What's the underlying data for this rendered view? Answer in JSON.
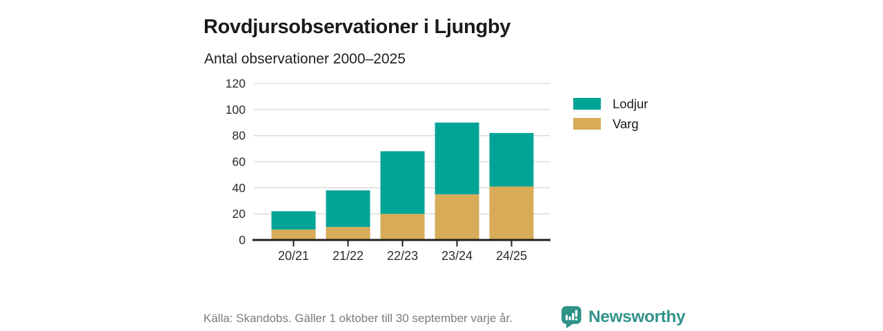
{
  "header": {
    "title": "Rovdjursobservationer i Ljungby",
    "subtitle": "Antal observationer 2000–2025"
  },
  "chart_data": {
    "type": "bar",
    "stacked": true,
    "categories": [
      "20/21",
      "21/22",
      "22/23",
      "23/24",
      "24/25"
    ],
    "series": [
      {
        "name": "Lodjur",
        "color": "#00a497",
        "values": [
          14,
          28,
          48,
          55,
          41
        ]
      },
      {
        "name": "Varg",
        "color": "#d7ab58",
        "values": [
          8,
          10,
          20,
          35,
          41
        ]
      }
    ],
    "totals": [
      22,
      38,
      68,
      90,
      82
    ],
    "title": "Rovdjursobservationer i Ljungby",
    "subtitle": "Antal observationer 2000–2025",
    "xlabel": "",
    "ylabel": "",
    "ylim": [
      0,
      120
    ],
    "ytick_step": 20,
    "yticks": [
      0,
      20,
      40,
      60,
      80,
      100,
      120
    ],
    "grid": true,
    "legend_position": "right",
    "axis_color": "#1f1f1f",
    "grid_color": "#d9d9d9"
  },
  "footer": {
    "source": "Källa: Skandobs. Gäller 1 oktober till 30 september varje år.",
    "brand": "Newsworthy",
    "brand_color": "#33948c",
    "logo_icon": "newsworthy-chart-bubble-icon"
  }
}
